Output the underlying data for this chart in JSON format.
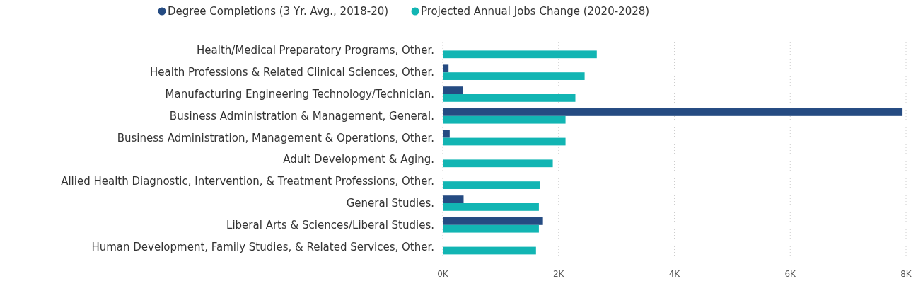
{
  "chart_data": {
    "type": "bar",
    "orientation": "horizontal",
    "categories": [
      "Health/Medical Preparatory Programs, Other.",
      "Health Professions & Related Clinical Sciences, Other.",
      "Manufacturing Engineering Technology/Technician.",
      "Business Administration & Management, General.",
      "Business Administration, Management & Operations, Other.",
      "Adult Development & Aging.",
      "Allied Health Diagnostic, Intervention, & Treatment Professions, Other.",
      "General Studies.",
      "Liberal Arts & Sciences/Liberal Studies.",
      "Human Development, Family Studies, & Related Services, Other."
    ],
    "series": [
      {
        "name": "Degree Completions (3 Yr. Avg., 2018-20)",
        "color": "#254b82",
        "values": [
          10,
          100,
          350,
          7940,
          120,
          10,
          10,
          360,
          1730,
          10
        ]
      },
      {
        "name": "Projected Annual Jobs Change (2020-2028)",
        "color": "#12b5b3",
        "values": [
          2660,
          2450,
          2290,
          2120,
          2120,
          1900,
          1680,
          1660,
          1660,
          1610
        ]
      }
    ],
    "xlim": [
      0,
      8000
    ],
    "xticks": [
      {
        "value": 0,
        "label": "0K"
      },
      {
        "value": 2000,
        "label": "2K"
      },
      {
        "value": 4000,
        "label": "4K"
      },
      {
        "value": 6000,
        "label": "6K"
      },
      {
        "value": 8000,
        "label": "8K"
      }
    ],
    "grid": "x",
    "legend": "top"
  }
}
